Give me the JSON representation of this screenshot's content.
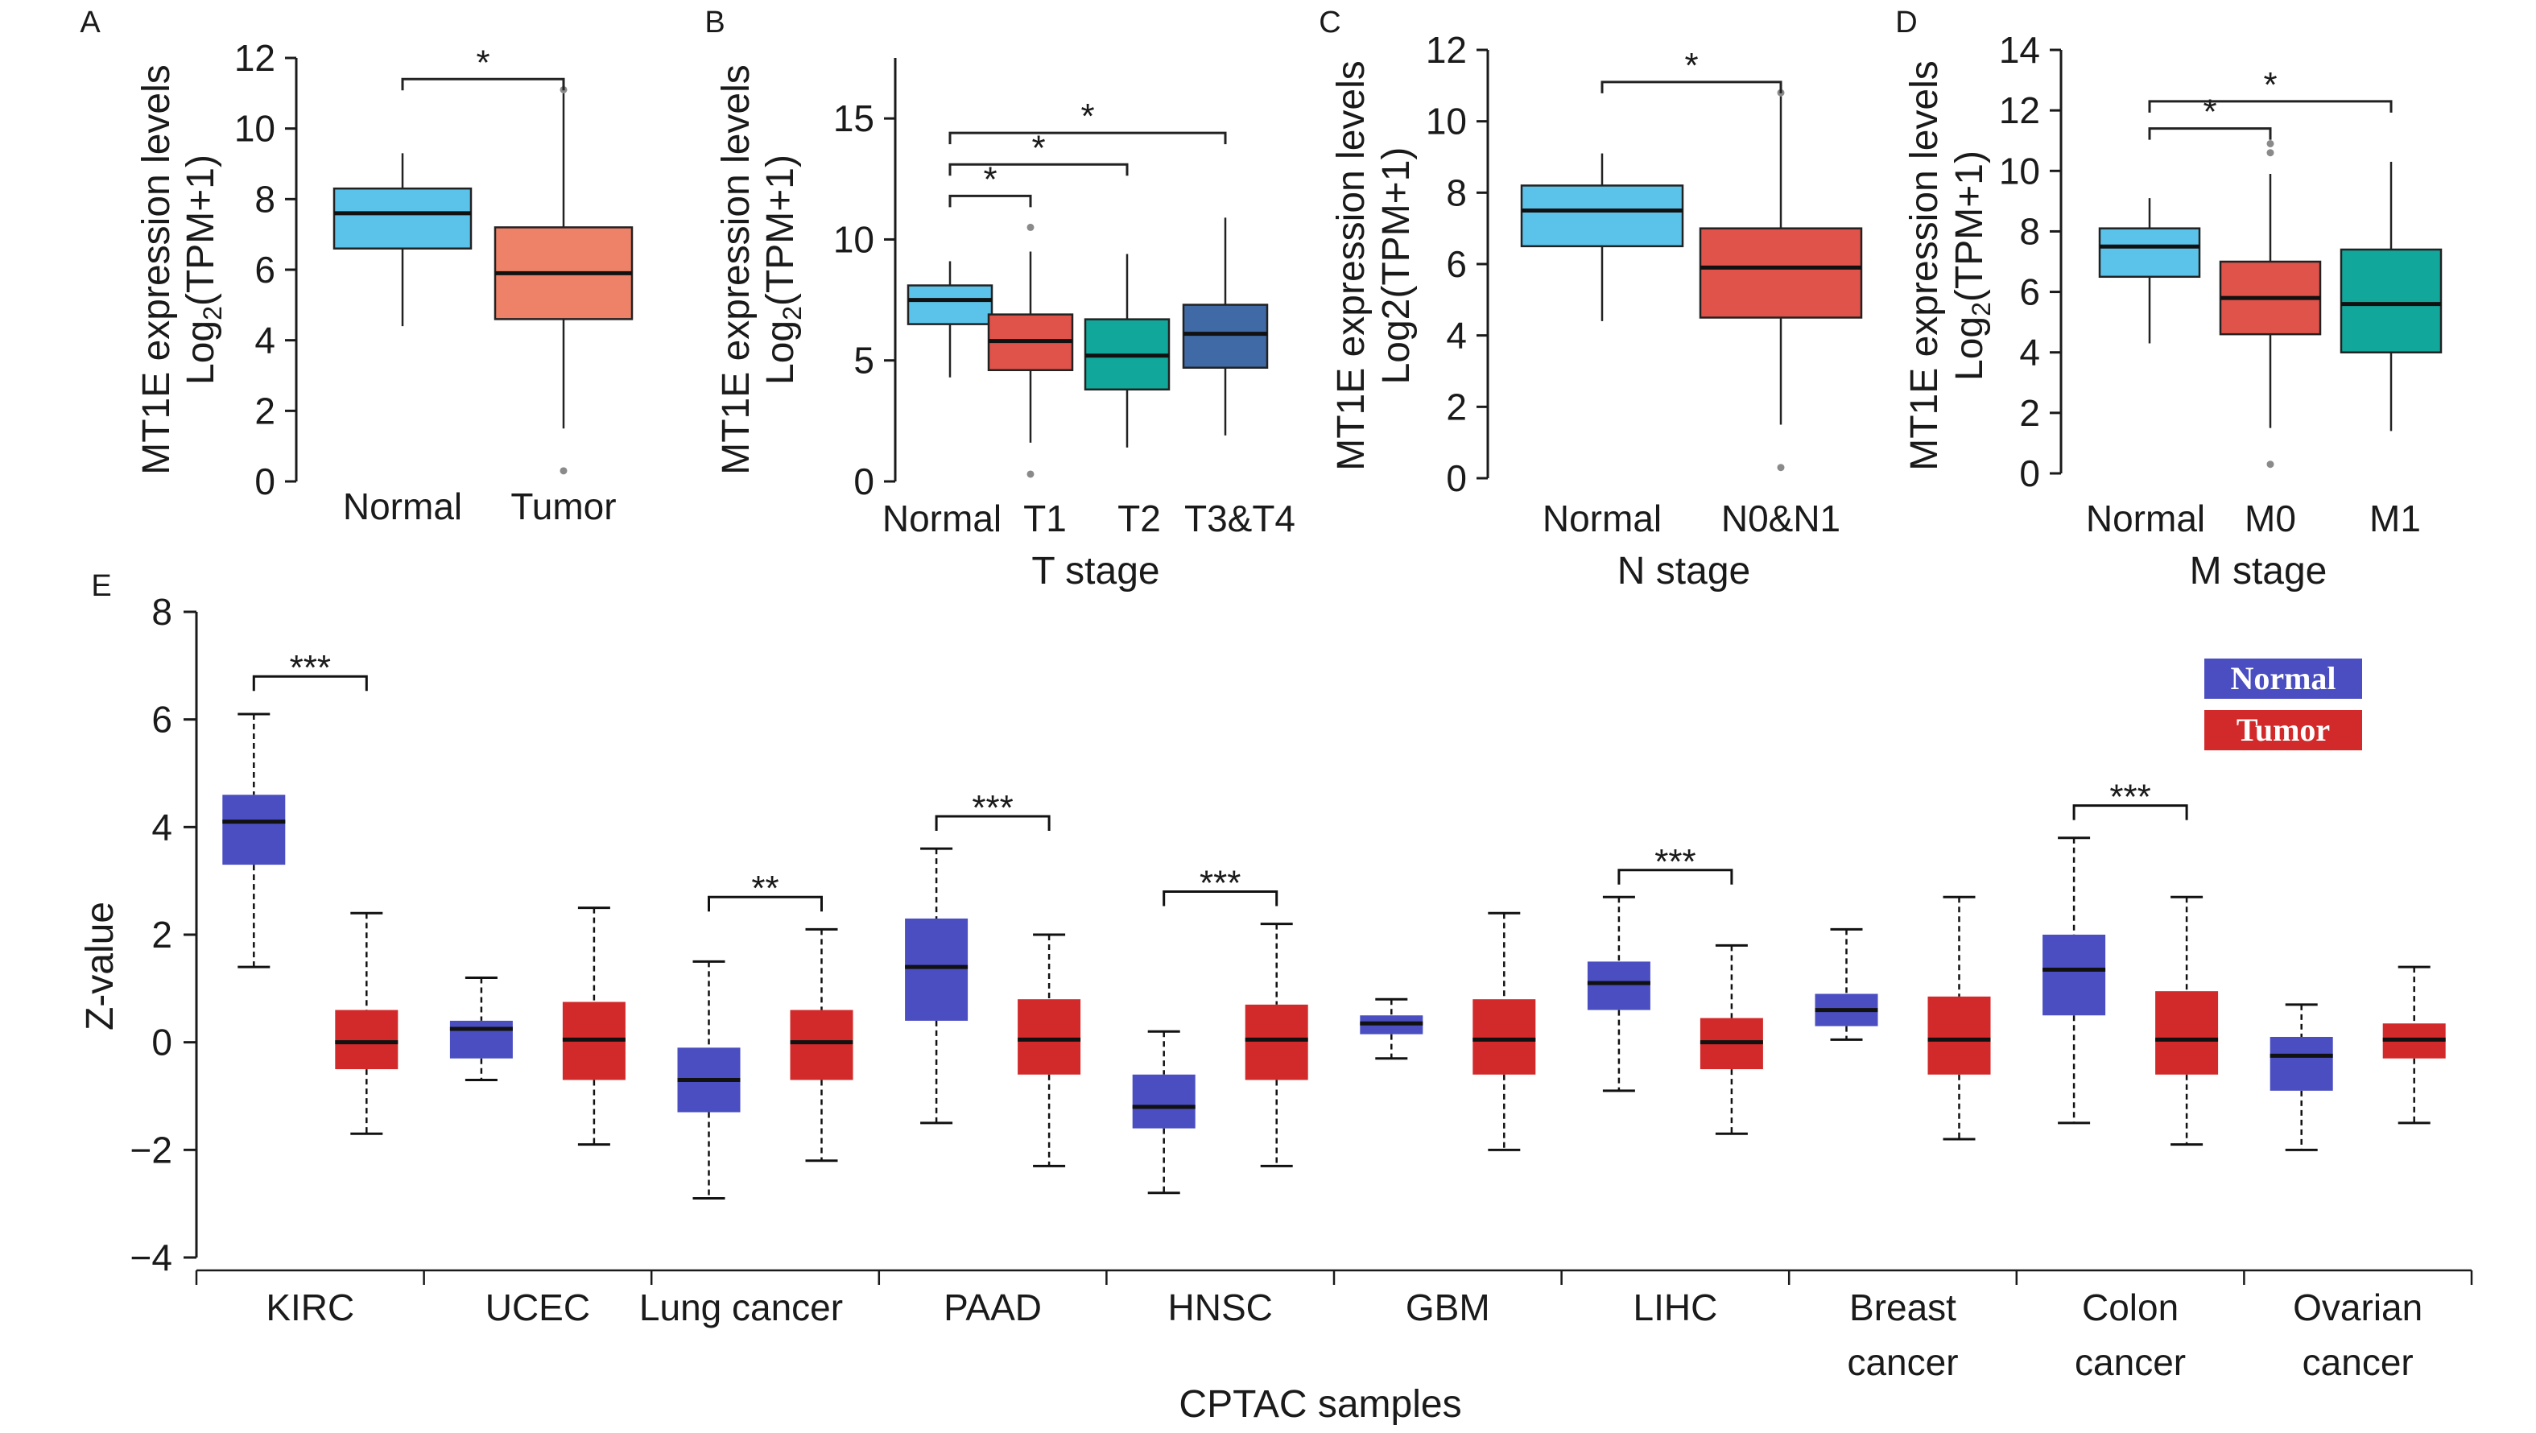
{
  "colors": {
    "normal_light": "#5bc3ea",
    "tumor_salmon": "#ee8268",
    "tumor_red": "#e0534a",
    "t2_teal": "#12a79b",
    "t34_blue": "#3f6aa6",
    "cptac_normal": "#4a4ec0",
    "cptac_tumor": "#d22a2a",
    "outlier": "#8a8a8a"
  },
  "chart_data": [
    {
      "panel": "A",
      "type": "box",
      "ylabel_line1": "MT1E expression levels",
      "ylabel_line2_prefix": "Log",
      "ylabel_line2_sub": "2",
      "ylabel_line2_suffix": "(TPM+1)",
      "xlabel": "",
      "ylim": [
        0,
        12
      ],
      "yticks": [
        "0",
        "2",
        "4",
        "6",
        "8",
        "10",
        "12"
      ],
      "categories": [
        "Normal",
        "Tumor"
      ],
      "boxes": [
        {
          "name": "Normal",
          "whisker_low": 4.4,
          "q1": 6.6,
          "median": 7.6,
          "q3": 8.3,
          "whisker_high": 9.3,
          "outliers": [],
          "color": "#5bc3ea"
        },
        {
          "name": "Tumor",
          "whisker_low": 1.5,
          "q1": 4.6,
          "median": 5.9,
          "q3": 7.2,
          "whisker_high": 11.0,
          "outliers": [
            0.3,
            11.1
          ],
          "color": "#ee8268"
        }
      ],
      "significance": [
        {
          "from": 0,
          "to": 1,
          "y": 11.4,
          "label": "*"
        }
      ]
    },
    {
      "panel": "B",
      "type": "box",
      "ylabel_line1": "MT1E expression levels",
      "ylabel_line2_prefix": "Log",
      "ylabel_line2_sub": "2",
      "ylabel_line2_suffix": "(TPM+1)",
      "xlabel": "T stage",
      "ylim": [
        0,
        17.5
      ],
      "yticks": [
        "0",
        "5",
        "10",
        "15"
      ],
      "categories": [
        "Normal",
        "T1",
        "T2",
        "T3&T4"
      ],
      "boxes": [
        {
          "name": "Normal",
          "whisker_low": 4.3,
          "q1": 6.5,
          "median": 7.5,
          "q3": 8.1,
          "whisker_high": 9.1,
          "outliers": [],
          "color": "#5bc3ea"
        },
        {
          "name": "T1",
          "whisker_low": 1.6,
          "q1": 4.6,
          "median": 5.8,
          "q3": 6.9,
          "whisker_high": 9.5,
          "outliers": [
            0.3,
            10.5
          ],
          "color": "#e0534a"
        },
        {
          "name": "T2",
          "whisker_low": 1.4,
          "q1": 3.8,
          "median": 5.2,
          "q3": 6.7,
          "whisker_high": 9.4,
          "outliers": [],
          "color": "#12a79b"
        },
        {
          "name": "T3&T4",
          "whisker_low": 1.9,
          "q1": 4.7,
          "median": 6.1,
          "q3": 7.3,
          "whisker_high": 10.9,
          "outliers": [],
          "color": "#3f6aa6"
        }
      ],
      "significance": [
        {
          "from": 0,
          "to": 1,
          "y": 11.8,
          "label": "*"
        },
        {
          "from": 0,
          "to": 2,
          "y": 13.1,
          "label": "*"
        },
        {
          "from": 0,
          "to": 3,
          "y": 14.4,
          "label": "*"
        }
      ]
    },
    {
      "panel": "C",
      "type": "box",
      "ylabel_line1": "MT1E expression levels",
      "ylabel_line2_prefix": "Log2(TPM+1)",
      "ylabel_line2_sub": "",
      "ylabel_line2_suffix": "",
      "xlabel": "N stage",
      "ylim": [
        0,
        12
      ],
      "yticks": [
        "0",
        "2",
        "4",
        "6",
        "8",
        "10",
        "12"
      ],
      "categories": [
        "Normal",
        "N0&N1"
      ],
      "boxes": [
        {
          "name": "Normal",
          "whisker_low": 4.4,
          "q1": 6.5,
          "median": 7.5,
          "q3": 8.2,
          "whisker_high": 9.1,
          "outliers": [],
          "color": "#5bc3ea"
        },
        {
          "name": "N0&N1",
          "whisker_low": 1.5,
          "q1": 4.5,
          "median": 5.9,
          "q3": 7.0,
          "whisker_high": 10.7,
          "outliers": [
            0.3,
            10.8
          ],
          "color": "#e0534a"
        }
      ],
      "significance": [
        {
          "from": 0,
          "to": 1,
          "y": 11.1,
          "label": "*"
        }
      ]
    },
    {
      "panel": "D",
      "type": "box",
      "ylabel_line1": "MT1E expression levels",
      "ylabel_line2_prefix": "Log",
      "ylabel_line2_sub": "2",
      "ylabel_line2_suffix": "(TPM+1)",
      "xlabel": "M stage",
      "ylim": [
        0,
        14
      ],
      "yticks": [
        "0",
        "2",
        "4",
        "6",
        "8",
        "10",
        "12",
        "14"
      ],
      "categories": [
        "Normal",
        "M0",
        "M1"
      ],
      "boxes": [
        {
          "name": "Normal",
          "whisker_low": 4.3,
          "q1": 6.5,
          "median": 7.5,
          "q3": 8.1,
          "whisker_high": 9.1,
          "outliers": [],
          "color": "#5bc3ea"
        },
        {
          "name": "M0",
          "whisker_low": 1.5,
          "q1": 4.6,
          "median": 5.8,
          "q3": 7.0,
          "whisker_high": 9.9,
          "outliers": [
            0.3,
            10.6,
            10.9
          ],
          "color": "#e0534a"
        },
        {
          "name": "M1",
          "whisker_low": 1.4,
          "q1": 4.0,
          "median": 5.6,
          "q3": 7.4,
          "whisker_high": 10.3,
          "outliers": [],
          "color": "#12a79b"
        }
      ],
      "significance": [
        {
          "from": 0,
          "to": 1,
          "y": 11.4,
          "label": "*"
        },
        {
          "from": 0,
          "to": 2,
          "y": 12.3,
          "label": "*"
        }
      ]
    },
    {
      "panel": "E",
      "type": "box",
      "ylabel": "Z-value",
      "xlabel": "CPTAC samples",
      "ylim": [
        -4,
        8
      ],
      "yticks": [
        "-4",
        "-2",
        "0",
        "2",
        "4",
        "6",
        "8"
      ],
      "legend": [
        {
          "label": "Normal",
          "color": "#4a4ec0"
        },
        {
          "label": "Tumor",
          "color": "#d22a2a"
        }
      ],
      "legend_position": "top-right",
      "groups": [
        {
          "label": [
            "KIRC"
          ],
          "normal": {
            "whisker_low": 1.4,
            "q1": 3.3,
            "median": 4.1,
            "q3": 4.6,
            "whisker_high": 6.1
          },
          "tumor": {
            "whisker_low": -1.7,
            "q1": -0.5,
            "median": 0.0,
            "q3": 0.6,
            "whisker_high": 2.4
          },
          "significance": "***",
          "sig_y": 6.8
        },
        {
          "label": [
            "UCEC"
          ],
          "normal": {
            "whisker_low": -0.7,
            "q1": -0.3,
            "median": 0.25,
            "q3": 0.4,
            "whisker_high": 1.2
          },
          "tumor": {
            "whisker_low": -1.9,
            "q1": -0.7,
            "median": 0.05,
            "q3": 0.75,
            "whisker_high": 2.5
          },
          "significance": "",
          "sig_y": 0
        },
        {
          "label": [
            "Lung cancer"
          ],
          "normal": {
            "whisker_low": -2.9,
            "q1": -1.3,
            "median": -0.7,
            "q3": -0.1,
            "whisker_high": 1.5
          },
          "tumor": {
            "whisker_low": -2.2,
            "q1": -0.7,
            "median": 0.0,
            "q3": 0.6,
            "whisker_high": 2.1
          },
          "significance": "**",
          "sig_y": 2.7
        },
        {
          "label": [
            "PAAD"
          ],
          "normal": {
            "whisker_low": -1.5,
            "q1": 0.4,
            "median": 1.4,
            "q3": 2.3,
            "whisker_high": 3.6
          },
          "tumor": {
            "whisker_low": -2.3,
            "q1": -0.6,
            "median": 0.05,
            "q3": 0.8,
            "whisker_high": 2.0
          },
          "significance": "***",
          "sig_y": 4.2
        },
        {
          "label": [
            "HNSC"
          ],
          "normal": {
            "whisker_low": -2.8,
            "q1": -1.6,
            "median": -1.2,
            "q3": -0.6,
            "whisker_high": 0.2
          },
          "tumor": {
            "whisker_low": -2.3,
            "q1": -0.7,
            "median": 0.05,
            "q3": 0.7,
            "whisker_high": 2.2
          },
          "significance": "***",
          "sig_y": 2.8
        },
        {
          "label": [
            "GBM"
          ],
          "normal": {
            "whisker_low": -0.3,
            "q1": 0.15,
            "median": 0.35,
            "q3": 0.5,
            "whisker_high": 0.8
          },
          "tumor": {
            "whisker_low": -2.0,
            "q1": -0.6,
            "median": 0.05,
            "q3": 0.8,
            "whisker_high": 2.4
          },
          "significance": "",
          "sig_y": 0
        },
        {
          "label": [
            "LIHC"
          ],
          "normal": {
            "whisker_low": -0.9,
            "q1": 0.6,
            "median": 1.1,
            "q3": 1.5,
            "whisker_high": 2.7
          },
          "tumor": {
            "whisker_low": -1.7,
            "q1": -0.5,
            "median": 0.0,
            "q3": 0.45,
            "whisker_high": 1.8
          },
          "significance": "***",
          "sig_y": 3.2
        },
        {
          "label": [
            "Breast",
            "cancer"
          ],
          "normal": {
            "whisker_low": 0.05,
            "q1": 0.3,
            "median": 0.6,
            "q3": 0.9,
            "whisker_high": 2.1
          },
          "tumor": {
            "whisker_low": -1.8,
            "q1": -0.6,
            "median": 0.05,
            "q3": 0.85,
            "whisker_high": 2.7
          },
          "significance": "",
          "sig_y": 0
        },
        {
          "label": [
            "Colon",
            "cancer"
          ],
          "normal": {
            "whisker_low": -1.5,
            "q1": 0.5,
            "median": 1.35,
            "q3": 2.0,
            "whisker_high": 3.8
          },
          "tumor": {
            "whisker_low": -1.9,
            "q1": -0.6,
            "median": 0.05,
            "q3": 0.95,
            "whisker_high": 2.7
          },
          "significance": "***",
          "sig_y": 4.4
        },
        {
          "label": [
            "Ovarian",
            "cancer"
          ],
          "normal": {
            "whisker_low": -2.0,
            "q1": -0.9,
            "median": -0.25,
            "q3": 0.1,
            "whisker_high": 0.7
          },
          "tumor": {
            "whisker_low": -1.5,
            "q1": -0.3,
            "median": 0.05,
            "q3": 0.35,
            "whisker_high": 1.4
          },
          "significance": "",
          "sig_y": 0
        }
      ]
    }
  ]
}
